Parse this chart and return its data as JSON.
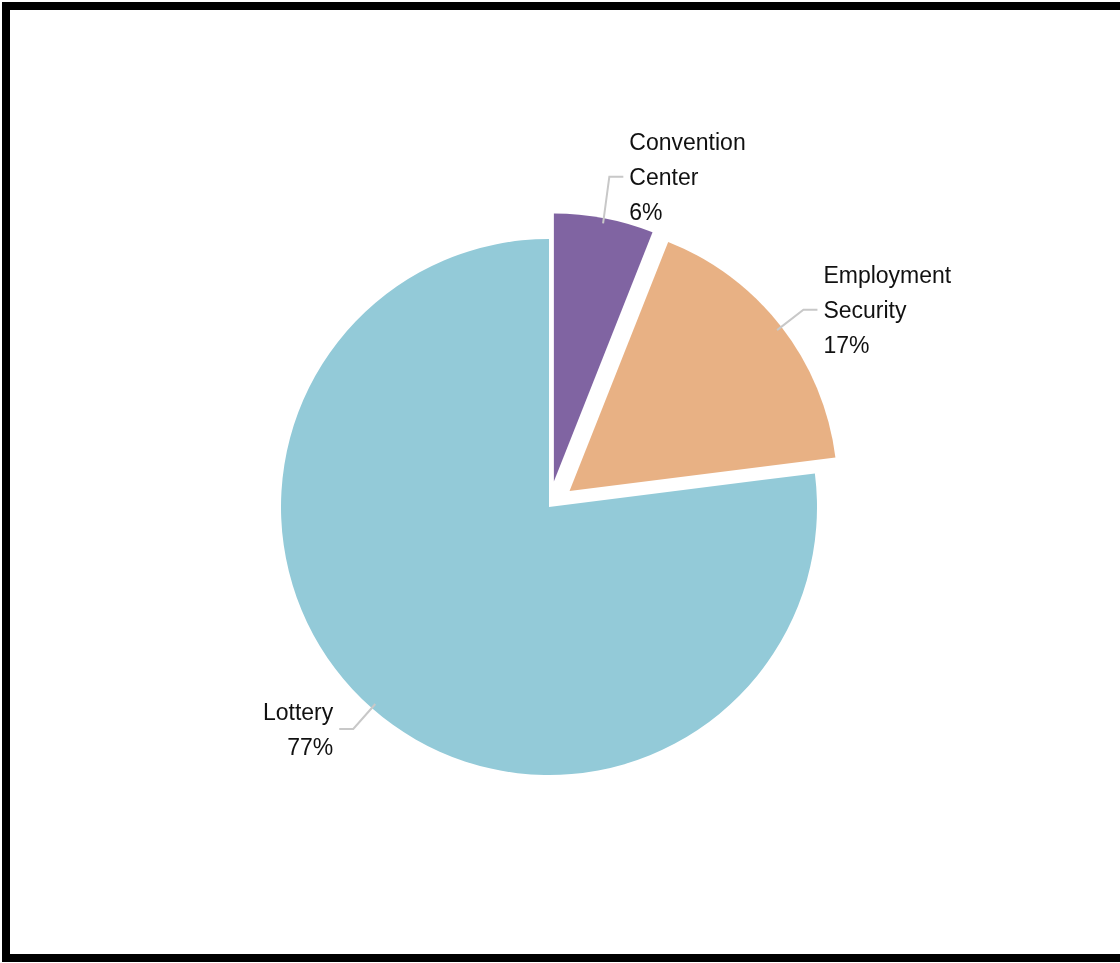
{
  "chart_data": {
    "type": "pie",
    "categories": [
      "Convention Center",
      "Employment Security",
      "Lottery"
    ],
    "values": [
      6,
      17,
      77
    ],
    "colors": [
      "#8064a2",
      "#e8b184",
      "#93cad8"
    ],
    "value_labels": [
      "6%",
      "17%",
      "77%"
    ]
  }
}
